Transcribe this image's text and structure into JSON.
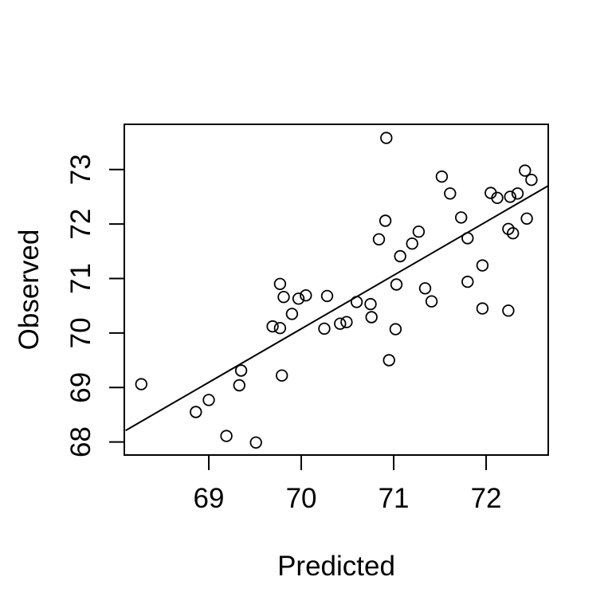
{
  "figure": {
    "background": "#ffffff",
    "foreground": "#000000"
  },
  "chart_data": {
    "type": "scatter",
    "title": "",
    "xlabel": "Predicted",
    "ylabel": "Observed",
    "xlim": [
      68.086,
      72.672
    ],
    "ylim": [
      67.76,
      73.83
    ],
    "xticks": [
      69,
      70,
      71,
      72
    ],
    "yticks": [
      68,
      69,
      70,
      71,
      72,
      73
    ],
    "grid": false,
    "legend": null,
    "marker": {
      "shape": "open-circle",
      "radius_px": 6.8,
      "stroke_px": 1.8,
      "color": "#000000"
    },
    "points": [
      [
        68.27,
        69.06
      ],
      [
        68.86,
        68.55
      ],
      [
        69.0,
        68.77
      ],
      [
        69.19,
        68.11
      ],
      [
        69.51,
        67.99
      ],
      [
        69.35,
        69.31
      ],
      [
        69.33,
        69.04
      ],
      [
        69.79,
        69.22
      ],
      [
        69.77,
        70.9
      ],
      [
        69.81,
        70.66
      ],
      [
        69.97,
        70.63
      ],
      [
        70.05,
        70.69
      ],
      [
        70.28,
        70.68
      ],
      [
        69.9,
        70.35
      ],
      [
        69.69,
        70.12
      ],
      [
        69.77,
        70.09
      ],
      [
        70.25,
        70.08
      ],
      [
        70.42,
        70.17
      ],
      [
        70.49,
        70.2
      ],
      [
        70.6,
        70.57
      ],
      [
        70.75,
        70.53
      ],
      [
        70.76,
        70.29
      ],
      [
        71.02,
        70.07
      ],
      [
        70.95,
        69.5
      ],
      [
        71.41,
        70.58
      ],
      [
        70.92,
        73.58
      ],
      [
        71.52,
        72.87
      ],
      [
        71.61,
        72.56
      ],
      [
        71.73,
        72.12
      ],
      [
        70.91,
        72.06
      ],
      [
        70.84,
        71.72
      ],
      [
        71.27,
        71.86
      ],
      [
        71.2,
        71.64
      ],
      [
        71.07,
        71.41
      ],
      [
        71.8,
        71.74
      ],
      [
        71.03,
        70.89
      ],
      [
        71.34,
        70.82
      ],
      [
        71.8,
        70.94
      ],
      [
        71.96,
        71.24
      ],
      [
        71.96,
        70.45
      ],
      [
        72.24,
        70.41
      ],
      [
        72.42,
        72.98
      ],
      [
        72.49,
        72.81
      ],
      [
        72.05,
        72.57
      ],
      [
        72.12,
        72.48
      ],
      [
        72.26,
        72.5
      ],
      [
        72.34,
        72.56
      ],
      [
        72.44,
        72.1
      ],
      [
        72.24,
        71.91
      ],
      [
        72.29,
        71.83
      ]
    ],
    "fit_line": {
      "x1": 68.1,
      "y1": 68.21,
      "x2": 72.67,
      "y2": 72.7
    }
  }
}
